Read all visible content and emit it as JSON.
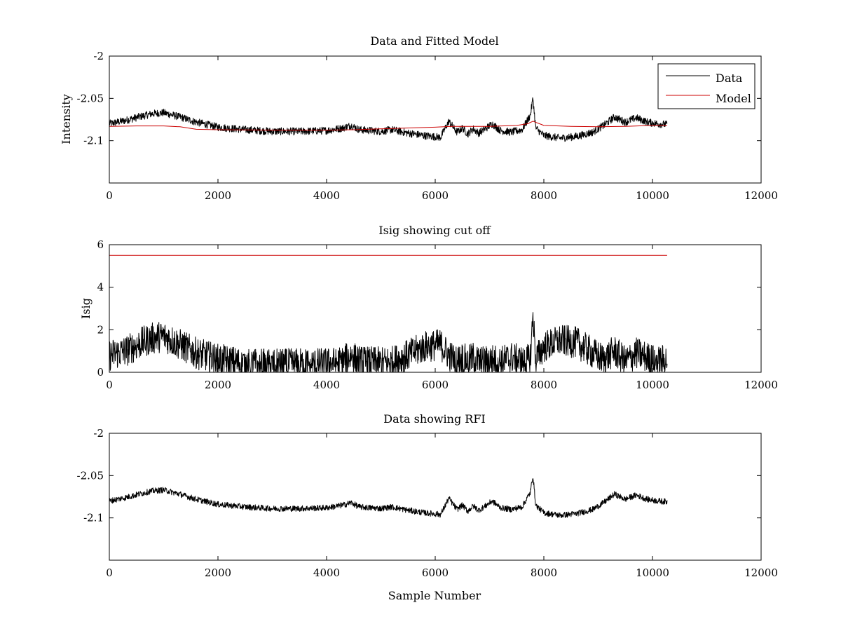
{
  "colors": {
    "data": "#000000",
    "model": "#cc0000",
    "axes": "#000000",
    "background": "#ffffff"
  },
  "chart_data": [
    {
      "type": "line",
      "title": "Data and Fitted Model",
      "xlabel": "",
      "ylabel": "Intensity",
      "xlim": [
        0,
        12000
      ],
      "ylim": [
        -2.15,
        -2.0
      ],
      "xticks": [
        "0",
        "2000",
        "4000",
        "6000",
        "8000",
        "10000",
        "12000"
      ],
      "yticks": [
        "-2",
        "-2.05",
        "-2.1"
      ],
      "legend_position": "top-right",
      "series": [
        {
          "name": "Data",
          "color": "#000000",
          "noise": 0.0045,
          "x": [
            0,
            300,
            600,
            800,
            1000,
            1300,
            1600,
            2000,
            2500,
            3000,
            3500,
            4000,
            4300,
            4450,
            4600,
            5000,
            5200,
            5500,
            5800,
            6100,
            6250,
            6400,
            6500,
            6600,
            6700,
            6800,
            6900,
            7050,
            7200,
            7400,
            7600,
            7750,
            7800,
            7850,
            8000,
            8300,
            8600,
            8900,
            9100,
            9300,
            9500,
            9700,
            9900,
            10100,
            10270
          ],
          "y": [
            -2.08,
            -2.076,
            -2.071,
            -2.068,
            -2.067,
            -2.072,
            -2.078,
            -2.084,
            -2.087,
            -2.089,
            -2.089,
            -2.088,
            -2.085,
            -2.082,
            -2.087,
            -2.089,
            -2.087,
            -2.091,
            -2.094,
            -2.096,
            -2.077,
            -2.09,
            -2.085,
            -2.092,
            -2.086,
            -2.091,
            -2.087,
            -2.08,
            -2.088,
            -2.09,
            -2.087,
            -2.07,
            -2.05,
            -2.085,
            -2.094,
            -2.097,
            -2.095,
            -2.09,
            -2.082,
            -2.072,
            -2.078,
            -2.073,
            -2.078,
            -2.08,
            -2.081
          ]
        },
        {
          "name": "Model",
          "color": "#cc0000",
          "noise": 0,
          "x": [
            0,
            500,
            1000,
            1300,
            1600,
            2000,
            3000,
            4000,
            4500,
            5000,
            6000,
            6300,
            7000,
            7500,
            7700,
            7800,
            8000,
            8500,
            9000,
            9500,
            10000,
            10270
          ],
          "y": [
            -2.083,
            -2.0825,
            -2.0825,
            -2.0835,
            -2.0865,
            -2.087,
            -2.0875,
            -2.0875,
            -2.087,
            -2.086,
            -2.084,
            -2.083,
            -2.083,
            -2.082,
            -2.08,
            -2.077,
            -2.082,
            -2.083,
            -2.0835,
            -2.083,
            -2.082,
            -2.082
          ]
        }
      ]
    },
    {
      "type": "line",
      "title": "Isig showing cut off",
      "xlabel": "",
      "ylabel": "Isig",
      "xlim": [
        0,
        12000
      ],
      "ylim": [
        0,
        6
      ],
      "xticks": [
        "0",
        "2000",
        "4000",
        "6000",
        "8000",
        "10000",
        "12000"
      ],
      "yticks": [
        "0",
        "2",
        "4",
        "6"
      ],
      "series": [
        {
          "color": "#000000",
          "noise": 0.75,
          "floor": 0,
          "x": [
            0,
            300,
            600,
            800,
            1000,
            1300,
            1600,
            2000,
            2500,
            3000,
            3500,
            4000,
            4300,
            4450,
            4600,
            5000,
            5200,
            5500,
            5800,
            6100,
            6250,
            6400,
            6500,
            6600,
            6700,
            6800,
            6900,
            7050,
            7200,
            7400,
            7600,
            7750,
            7800,
            7850,
            8000,
            8300,
            8600,
            8900,
            9100,
            9300,
            9500,
            9700,
            9900,
            10100,
            10270
          ],
          "y": [
            0.8,
            1.0,
            1.4,
            1.6,
            1.7,
            1.3,
            0.9,
            0.6,
            0.4,
            0.35,
            0.4,
            0.4,
            0.5,
            0.8,
            0.5,
            0.45,
            0.5,
            0.8,
            1.2,
            1.3,
            0.8,
            0.5,
            0.7,
            0.5,
            0.7,
            0.5,
            0.5,
            0.6,
            0.5,
            0.7,
            0.5,
            0.6,
            2.7,
            0.6,
            1.2,
            1.5,
            1.4,
            0.9,
            0.6,
            1.0,
            0.5,
            0.9,
            0.7,
            0.5,
            0.6
          ]
        },
        {
          "color": "#cc0000",
          "noise": 0,
          "x": [
            0,
            10270
          ],
          "y": [
            5.5,
            5.5
          ]
        }
      ]
    },
    {
      "type": "line",
      "title": "Data showing RFI",
      "xlabel": "Sample Number",
      "ylabel": "",
      "xlim": [
        0,
        12000
      ],
      "ylim": [
        -2.15,
        -2.0
      ],
      "xticks": [
        "0",
        "2000",
        "4000",
        "6000",
        "8000",
        "10000",
        "12000"
      ],
      "yticks": [
        "-2",
        "-2.05",
        "-2.1"
      ],
      "series": [
        {
          "color": "#000000",
          "noise": 0.0035,
          "x": [
            0,
            300,
            600,
            800,
            1000,
            1300,
            1600,
            2000,
            2500,
            3000,
            3500,
            4000,
            4300,
            4450,
            4600,
            5000,
            5200,
            5500,
            5800,
            6100,
            6250,
            6400,
            6500,
            6600,
            6700,
            6800,
            6900,
            7050,
            7200,
            7400,
            7600,
            7750,
            7800,
            7850,
            8000,
            8300,
            8600,
            8900,
            9100,
            9300,
            9500,
            9700,
            9900,
            10100,
            10270
          ],
          "y": [
            -2.08,
            -2.076,
            -2.071,
            -2.068,
            -2.067,
            -2.072,
            -2.078,
            -2.084,
            -2.087,
            -2.089,
            -2.089,
            -2.088,
            -2.085,
            -2.082,
            -2.087,
            -2.089,
            -2.087,
            -2.091,
            -2.094,
            -2.096,
            -2.077,
            -2.09,
            -2.085,
            -2.092,
            -2.086,
            -2.091,
            -2.087,
            -2.08,
            -2.088,
            -2.09,
            -2.087,
            -2.07,
            -2.05,
            -2.085,
            -2.094,
            -2.097,
            -2.095,
            -2.09,
            -2.082,
            -2.072,
            -2.078,
            -2.073,
            -2.078,
            -2.08,
            -2.081
          ]
        }
      ]
    }
  ]
}
